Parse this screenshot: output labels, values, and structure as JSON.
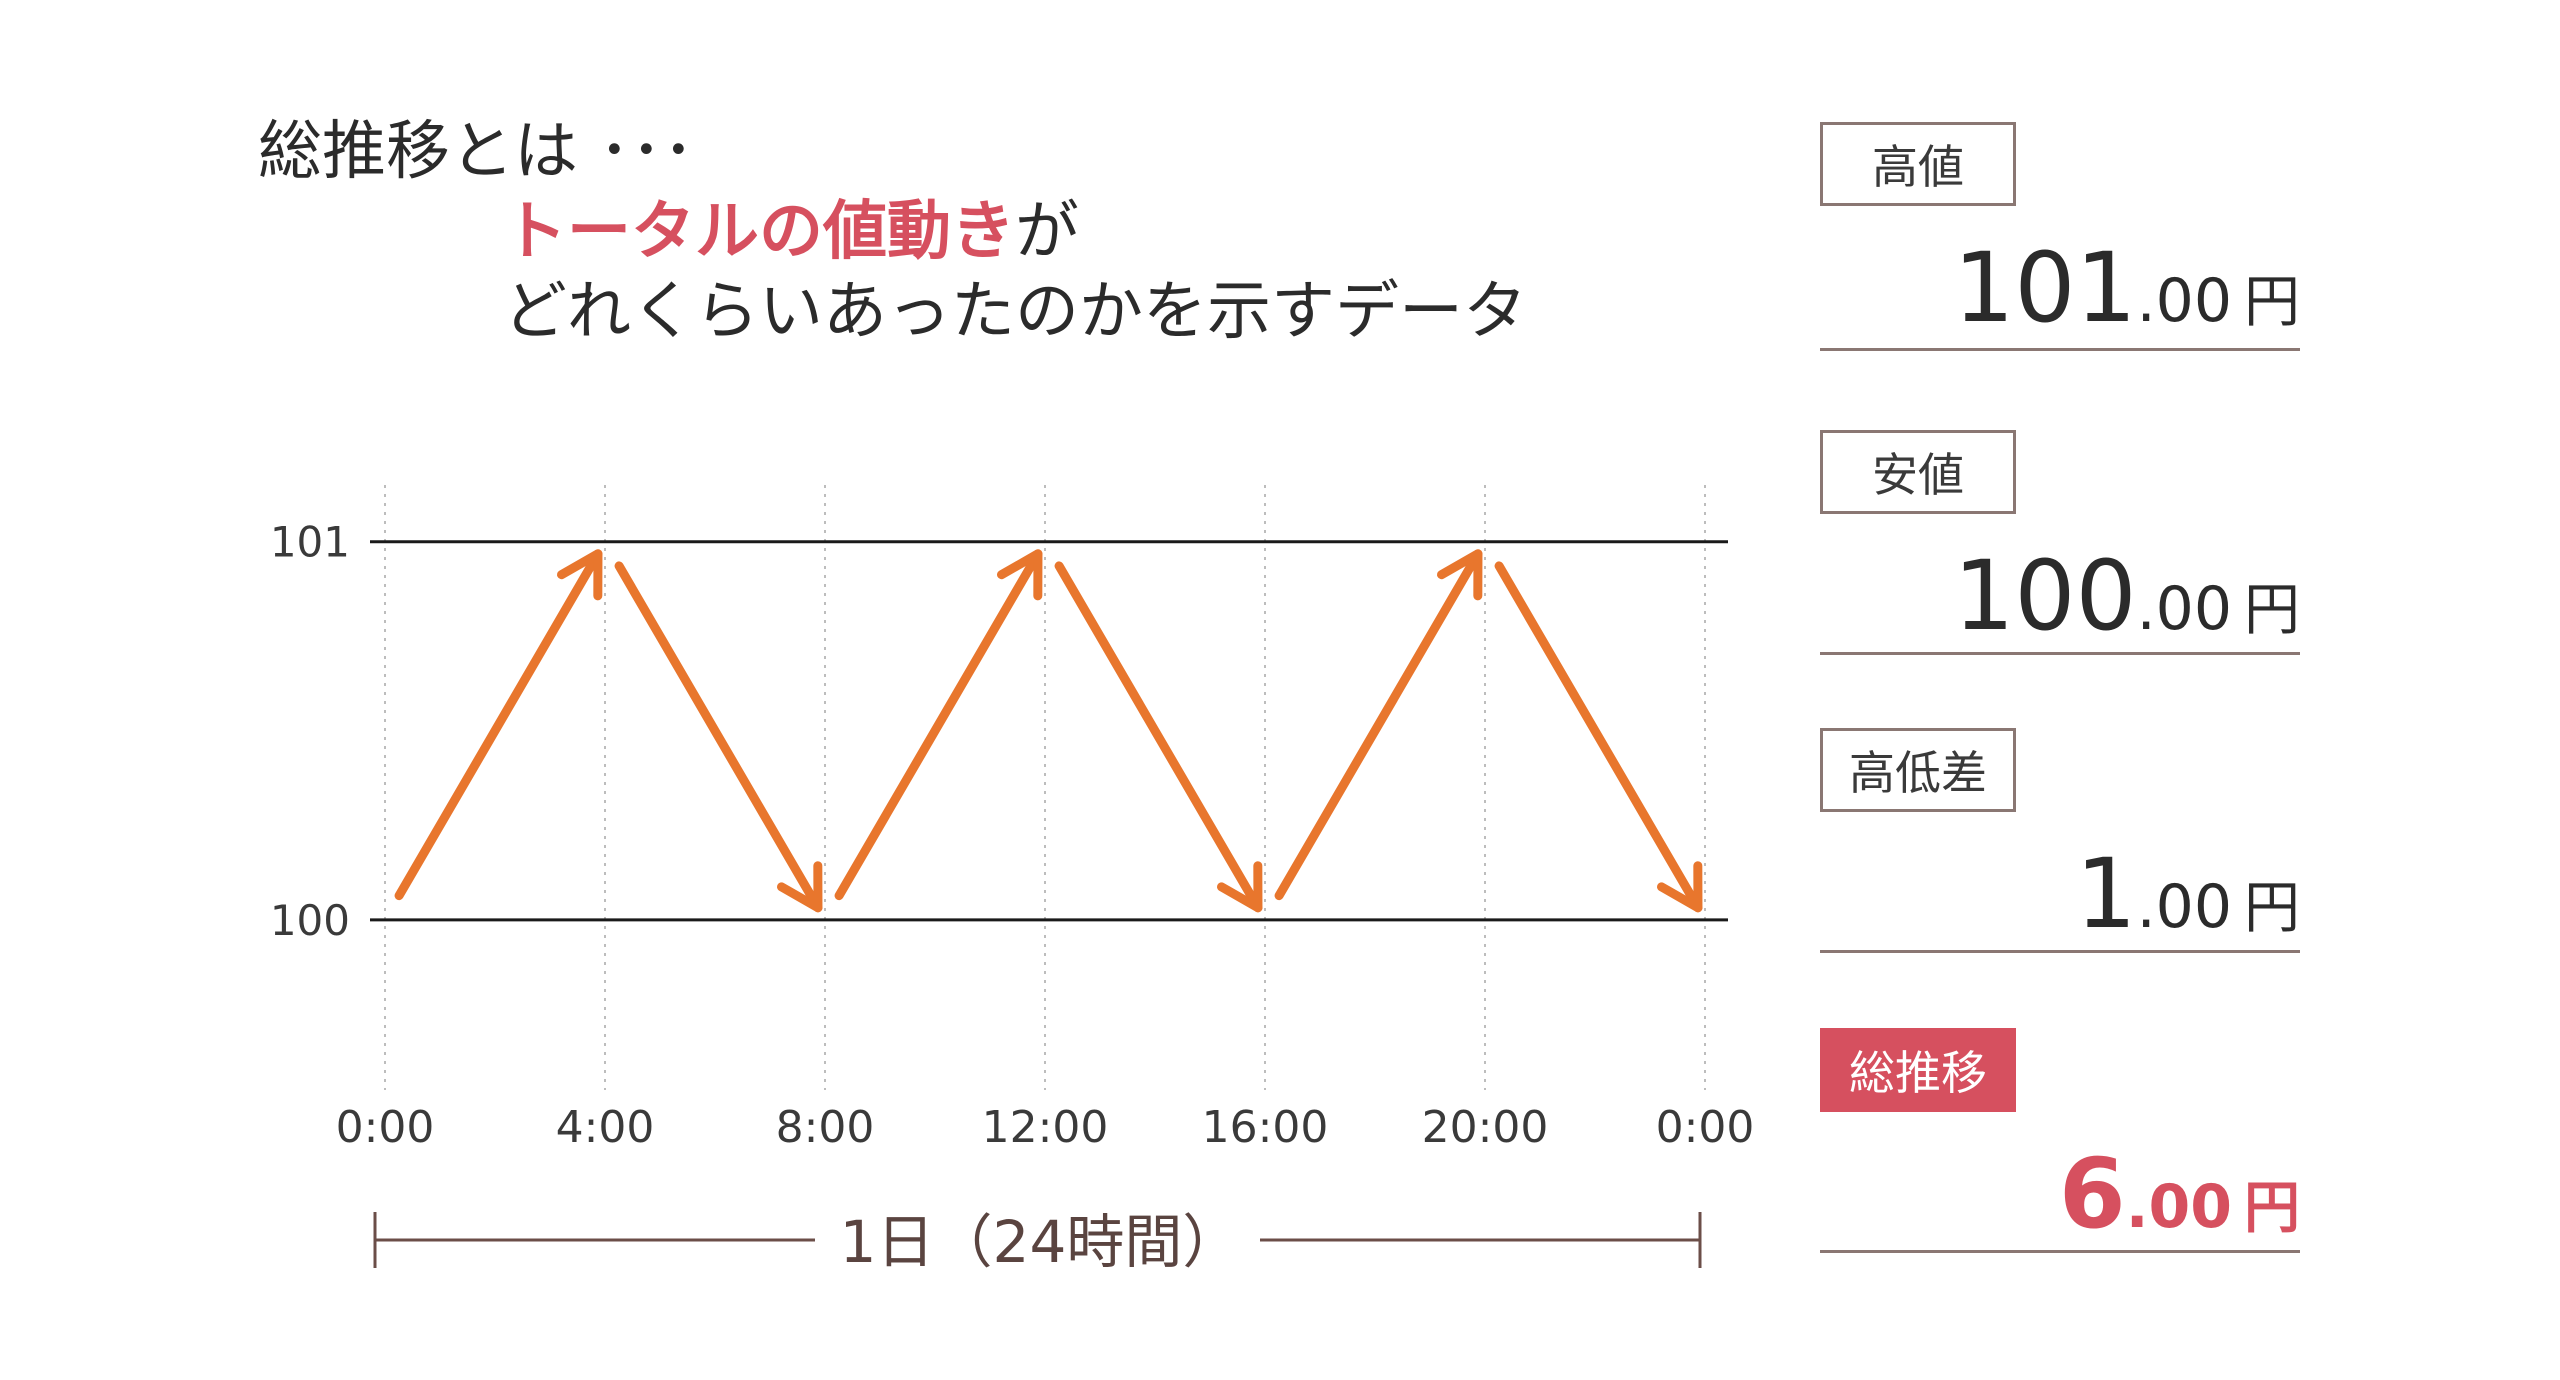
{
  "heading": {
    "line1": "総推移とは ･･･",
    "line2_highlight": "トータルの値動き",
    "line2_rest": "が",
    "line3": "どれくらいあったのかを示すデータ"
  },
  "chart_data": {
    "type": "line",
    "title": "",
    "xlabel": "1日（24時間）",
    "ylabel": "",
    "x_ticks": [
      "0:00",
      "4:00",
      "8:00",
      "12:00",
      "16:00",
      "20:00",
      "0:00"
    ],
    "y_ticks": [
      101,
      100
    ],
    "ylim": [
      99.55,
      101.15
    ],
    "series": [
      {
        "x": [
          "0:00",
          "4:00",
          "8:00",
          "12:00",
          "16:00",
          "20:00",
          "0:00"
        ],
        "values": [
          100,
          101,
          100,
          101,
          100,
          101,
          100
        ]
      }
    ],
    "grid": true,
    "series_color": "#e8762d"
  },
  "stats": [
    {
      "label": "高値",
      "int": "101",
      "dec": ".00",
      "unit": "円",
      "accent": false
    },
    {
      "label": "安値",
      "int": "100",
      "dec": ".00",
      "unit": "円",
      "accent": false
    },
    {
      "label": "高低差",
      "int": "1",
      "dec": ".00",
      "unit": "円",
      "accent": false
    },
    {
      "label": "総推移",
      "int": "6",
      "dec": ".00",
      "unit": "円",
      "accent": true
    }
  ],
  "colors": {
    "accent": "#d6505f",
    "arrow": "#e8762d",
    "border": "#8a7773"
  }
}
